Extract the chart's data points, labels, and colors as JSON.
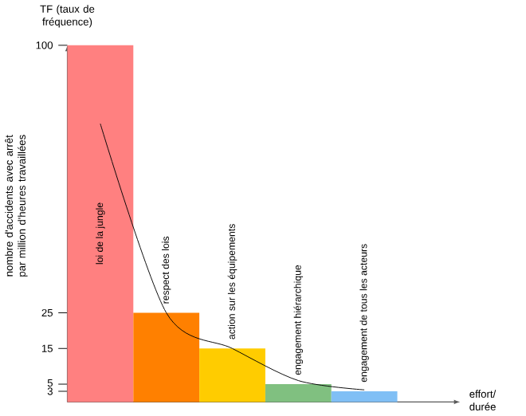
{
  "chart_data": {
    "type": "bar",
    "title": "TF (taux de fréquence)",
    "ylabel": "nombre d'accidents avec arrêt par million d'heures travaillées",
    "xlabel": "effort/ durée",
    "categories": [
      "loi de la jungle",
      "respect des lois",
      "action sur les équipements",
      "engagement hiérarchique",
      "engagement de tous les acteurs"
    ],
    "series": [
      {
        "colors": [
          "#ff8080",
          "#ff8000",
          "#ffcc00",
          "#80c080",
          "#80bff5"
        ],
        "values": [
          100,
          25,
          15,
          5,
          3
        ]
      },
      {
        "type": "line",
        "color": "#000000",
        "values": [
          78,
          25,
          15,
          6,
          3.4
        ]
      }
    ],
    "ylim": [
      0,
      100
    ],
    "yticks": [
      3,
      5,
      15,
      25,
      100
    ],
    "tick_labels": "y",
    "grid": false,
    "marker": "none",
    "line_style": "solid"
  }
}
